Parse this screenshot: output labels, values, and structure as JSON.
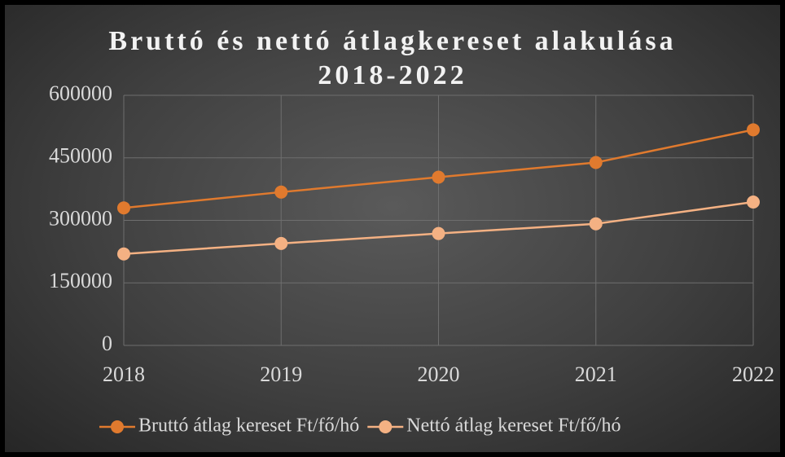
{
  "chart_data": {
    "type": "line",
    "title": "Bruttó és nettó átlagkereset alakulása 2018-2022",
    "x": [
      2018,
      2019,
      2020,
      2021,
      2022
    ],
    "xlim": [
      2018,
      2022
    ],
    "xticks": [
      2018,
      2019,
      2020,
      2021,
      2022
    ],
    "ylim": [
      0,
      600000
    ],
    "yticks": [
      0,
      150000,
      300000,
      450000,
      600000
    ],
    "grid": true,
    "legend": "bottom",
    "series": [
      {
        "name": "Bruttó átlag kereset Ft/fő/hó",
        "color": "#e07a2e",
        "values": [
          329900,
          367800,
          403600,
          438800,
          517300
        ]
      },
      {
        "name": "Nettó átlag kereset Ft/fő/hó",
        "color": "#f4b183",
        "values": [
          219400,
          244600,
          268400,
          291800,
          344000
        ]
      }
    ]
  }
}
